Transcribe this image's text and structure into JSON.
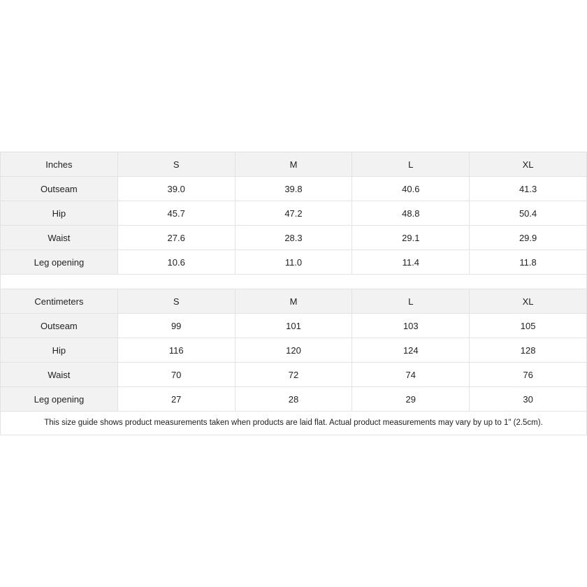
{
  "tables": [
    {
      "unit_label": "Inches",
      "sizes": [
        "S",
        "M",
        "L",
        "XL"
      ],
      "rows": [
        {
          "label": "Outseam",
          "values": [
            "39.0",
            "39.8",
            "40.6",
            "41.3"
          ]
        },
        {
          "label": "Hip",
          "values": [
            "45.7",
            "47.2",
            "48.8",
            "50.4"
          ]
        },
        {
          "label": "Waist",
          "values": [
            "27.6",
            "28.3",
            "29.1",
            "29.9"
          ]
        },
        {
          "label": "Leg opening",
          "values": [
            "10.6",
            "11.0",
            "11.4",
            "11.8"
          ]
        }
      ]
    },
    {
      "unit_label": "Centimeters",
      "sizes": [
        "S",
        "M",
        "L",
        "XL"
      ],
      "rows": [
        {
          "label": "Outseam",
          "values": [
            "99",
            "101",
            "103",
            "105"
          ]
        },
        {
          "label": "Hip",
          "values": [
            "116",
            "120",
            "124",
            "128"
          ]
        },
        {
          "label": "Waist",
          "values": [
            "70",
            "72",
            "74",
            "76"
          ]
        },
        {
          "label": "Leg opening",
          "values": [
            "27",
            "28",
            "29",
            "30"
          ]
        }
      ]
    }
  ],
  "note": "This size guide shows product measurements taken when products are laid flat.  Actual product measurements may vary by up to 1\" (2.5cm).",
  "colors": {
    "header_bg": "#f2f2f2",
    "border": "#e3e3e3"
  }
}
